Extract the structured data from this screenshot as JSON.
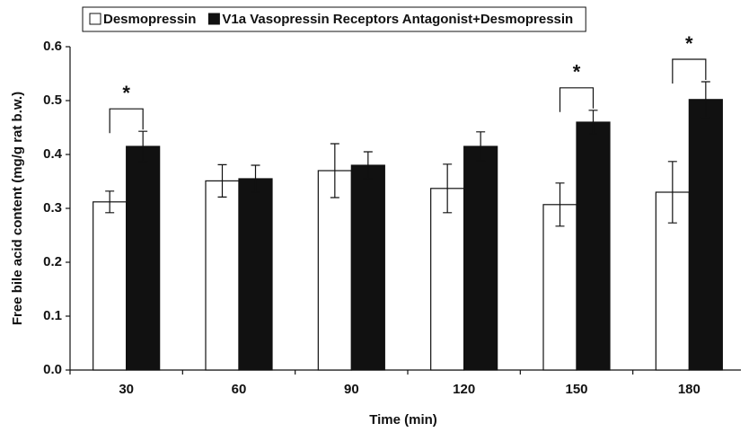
{
  "chart_data": {
    "type": "bar",
    "x_label": "Time (min)",
    "y_label": "Free bile acid content (mg/g rat b.w.)",
    "categories": [
      "30",
      "60",
      "90",
      "120",
      "150",
      "180"
    ],
    "series": [
      {
        "name": "Desmopressin",
        "color": "#ffffff",
        "values": [
          0.312,
          0.351,
          0.37,
          0.337,
          0.307,
          0.33
        ],
        "errors": [
          0.02,
          0.03,
          0.05,
          0.045,
          0.04,
          0.057
        ]
      },
      {
        "name": "V1a Vasopressin Receptors Antagonist+Desmopressin",
        "color": "#111111",
        "values": [
          0.415,
          0.355,
          0.38,
          0.415,
          0.46,
          0.502
        ],
        "errors": [
          0.028,
          0.025,
          0.025,
          0.027,
          0.022,
          0.033
        ]
      }
    ],
    "significance": [
      "*",
      null,
      null,
      null,
      "*",
      "*"
    ],
    "ylim": [
      0,
      0.6
    ],
    "yticks": [
      {
        "value": 0,
        "label": "0.0"
      },
      {
        "value": 0.1,
        "label": "0.1"
      },
      {
        "value": 0.2,
        "label": "0.2"
      },
      {
        "value": 0.3,
        "label": "0.3"
      },
      {
        "value": 0.4,
        "label": "0.4"
      },
      {
        "value": 0.5,
        "label": "0.5"
      },
      {
        "value": 0.6,
        "label": "0.6"
      }
    ],
    "legend": "top"
  }
}
